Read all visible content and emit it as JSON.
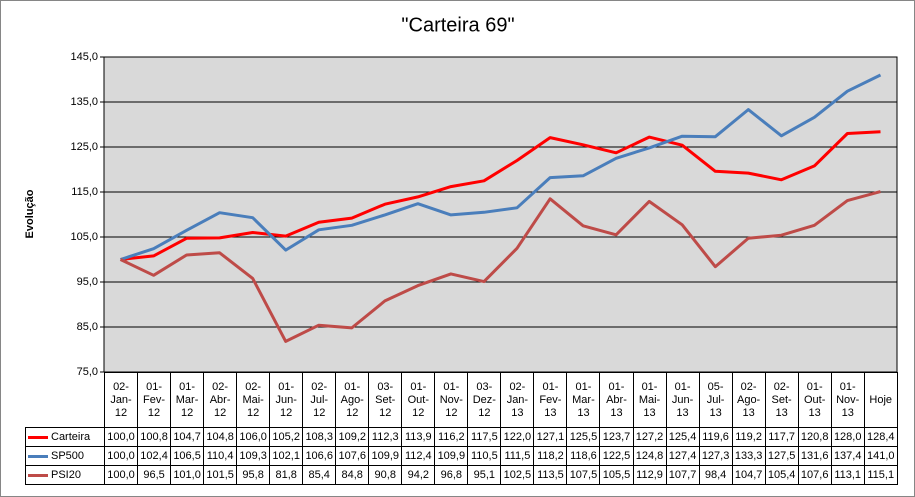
{
  "chart_data": {
    "type": "line",
    "title": "\"Carteira 69\"",
    "y_label": "Evolução",
    "categories": [
      "02-Jan-12",
      "01-Fev-12",
      "01-Mar-12",
      "02-Abr-12",
      "02-Mai-12",
      "01-Jun-12",
      "02-Jul-12",
      "01-Ago-12",
      "03-Set-12",
      "01-Out-12",
      "01-Nov-12",
      "03-Dez-12",
      "02-Jan-13",
      "01-Fev-13",
      "01-Mar-13",
      "01-Abr-13",
      "01-Mai-13",
      "01-Jun-13",
      "05-Jul-13",
      "02-Ago-13",
      "02-Set-13",
      "01-Out-13",
      "01-Nov-13",
      "Hoje"
    ],
    "series": [
      {
        "name": "Carteira",
        "color": "#ff0000",
        "values": [
          100.0,
          100.8,
          104.7,
          104.8,
          106.0,
          105.2,
          108.3,
          109.2,
          112.3,
          113.9,
          116.2,
          117.5,
          122.0,
          127.1,
          125.5,
          123.7,
          127.2,
          125.4,
          119.6,
          119.2,
          117.7,
          120.8,
          128.0,
          128.4
        ],
        "value_labels": [
          "100,0",
          "100,8",
          "104,7",
          "104,8",
          "106,0",
          "105,2",
          "108,3",
          "109,2",
          "112,3",
          "113,9",
          "116,2",
          "117,5",
          "122,0",
          "127,1",
          "125,5",
          "123,7",
          "127,2",
          "125,4",
          "119,6",
          "119,2",
          "117,7",
          "120,8",
          "128,0",
          "128,4"
        ]
      },
      {
        "name": "SP500",
        "color": "#4a7ebb",
        "values": [
          100.0,
          102.4,
          106.5,
          110.4,
          109.3,
          102.1,
          106.6,
          107.6,
          109.9,
          112.4,
          109.9,
          110.5,
          111.5,
          118.2,
          118.6,
          122.5,
          124.8,
          127.4,
          127.3,
          133.3,
          127.5,
          131.6,
          137.4,
          141.0
        ],
        "value_labels": [
          "100,0",
          "102,4",
          "106,5",
          "110,4",
          "109,3",
          "102,1",
          "106,6",
          "107,6",
          "109,9",
          "112,4",
          "109,9",
          "110,5",
          "111,5",
          "118,2",
          "118,6",
          "122,5",
          "124,8",
          "127,4",
          "127,3",
          "133,3",
          "127,5",
          "131,6",
          "137,4",
          "141,0"
        ]
      },
      {
        "name": "PSI20",
        "color": "#be4b48",
        "values": [
          100.0,
          96.5,
          101.0,
          101.5,
          95.8,
          81.8,
          85.4,
          84.8,
          90.8,
          94.2,
          96.8,
          95.1,
          102.5,
          113.5,
          107.5,
          105.5,
          112.9,
          107.7,
          98.4,
          104.7,
          105.4,
          107.6,
          113.1,
          115.1
        ],
        "value_labels": [
          "100,0",
          "96,5",
          "101,0",
          "101,5",
          "95,8",
          "81,8",
          "85,4",
          "84,8",
          "90,8",
          "94,2",
          "96,8",
          "95,1",
          "102,5",
          "113,5",
          "107,5",
          "105,5",
          "112,9",
          "107,7",
          "98,4",
          "104,7",
          "105,4",
          "107,6",
          "113,1",
          "115,1"
        ]
      }
    ],
    "ylim": [
      75,
      145
    ],
    "yticks": [
      {
        "value": 75,
        "label": "75,0"
      },
      {
        "value": 85,
        "label": "85,0"
      },
      {
        "value": 95,
        "label": "95,0"
      },
      {
        "value": 105,
        "label": "105,0"
      },
      {
        "value": 115,
        "label": "115,0"
      },
      {
        "value": 125,
        "label": "125,0"
      },
      {
        "value": 135,
        "label": "135,0"
      },
      {
        "value": 145,
        "label": "145,0"
      }
    ],
    "grid": true,
    "plot_background": "#d9d9d9"
  }
}
